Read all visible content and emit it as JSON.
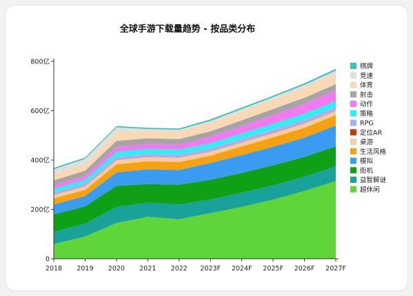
{
  "chart_data": {
    "type": "area",
    "stacked": true,
    "title": "全球手游下载量趋势 - 按品类分布",
    "xlabel": "",
    "ylabel": "",
    "ylim": [
      0,
      800
    ],
    "yticks": [
      "0",
      "200亿",
      "400亿",
      "600亿",
      "800亿"
    ],
    "ytick_values": [
      0,
      200,
      400,
      600,
      800
    ],
    "categories": [
      "2018",
      "2019",
      "2020",
      "2021",
      "2022",
      "2023F",
      "2024F",
      "2025F",
      "2026F",
      "2027F"
    ],
    "legend_position": "right",
    "grid": false,
    "series": [
      {
        "name": "超休闲",
        "color": "#5fd53a",
        "values": [
          60,
          90,
          145,
          170,
          160,
          185,
          210,
          240,
          275,
          315
        ]
      },
      {
        "name": "益智解谜",
        "color": "#18a29a",
        "values": [
          50,
          52,
          65,
          58,
          60,
          55,
          58,
          57,
          58,
          60
        ]
      },
      {
        "name": "街机",
        "color": "#0fa015",
        "values": [
          70,
          70,
          85,
          75,
          80,
          80,
          80,
          82,
          80,
          80
        ]
      },
      {
        "name": "模拟",
        "color": "#3a9cf0",
        "values": [
          40,
          42,
          55,
          60,
          60,
          68,
          72,
          75,
          78,
          85
        ]
      },
      {
        "name": "生活风格",
        "color": "#f6a20e",
        "values": [
          25,
          25,
          32,
          32,
          32,
          30,
          35,
          38,
          40,
          42
        ]
      },
      {
        "name": "桌游",
        "color": "#f8cba3",
        "values": [
          14,
          15,
          18,
          18,
          18,
          16,
          17,
          18,
          18,
          18
        ]
      },
      {
        "name": "定位AR",
        "color": "#c83a0d",
        "values": [
          1,
          1,
          1,
          1,
          1,
          1,
          1,
          1,
          1,
          1
        ]
      },
      {
        "name": "RPG",
        "color": "#aab0ef",
        "values": [
          10,
          10,
          12,
          12,
          12,
          13,
          13,
          13,
          14,
          14
        ]
      },
      {
        "name": "策略",
        "color": "#2ef0f0",
        "values": [
          14,
          15,
          20,
          20,
          20,
          20,
          22,
          23,
          24,
          24
        ]
      },
      {
        "name": "动作",
        "color": "#f27af0",
        "values": [
          14,
          15,
          20,
          20,
          20,
          27,
          30,
          36,
          40,
          44
        ]
      },
      {
        "name": "射击",
        "color": "#a5a5a5",
        "values": [
          20,
          22,
          25,
          22,
          22,
          22,
          23,
          24,
          25,
          25
        ]
      },
      {
        "name": "体育",
        "color": "#f9d9b3",
        "values": [
          25,
          25,
          35,
          30,
          30,
          33,
          35,
          37,
          40,
          42
        ]
      },
      {
        "name": "竞速",
        "color": "#dfdfdf",
        "values": [
          20,
          23,
          20,
          8,
          8,
          9,
          11,
          11,
          12,
          13
        ]
      },
      {
        "name": "棋牌",
        "color": "#3ac3b4",
        "values": [
          5,
          5,
          5,
          5,
          5,
          6,
          6,
          6,
          6,
          7
        ]
      }
    ]
  }
}
